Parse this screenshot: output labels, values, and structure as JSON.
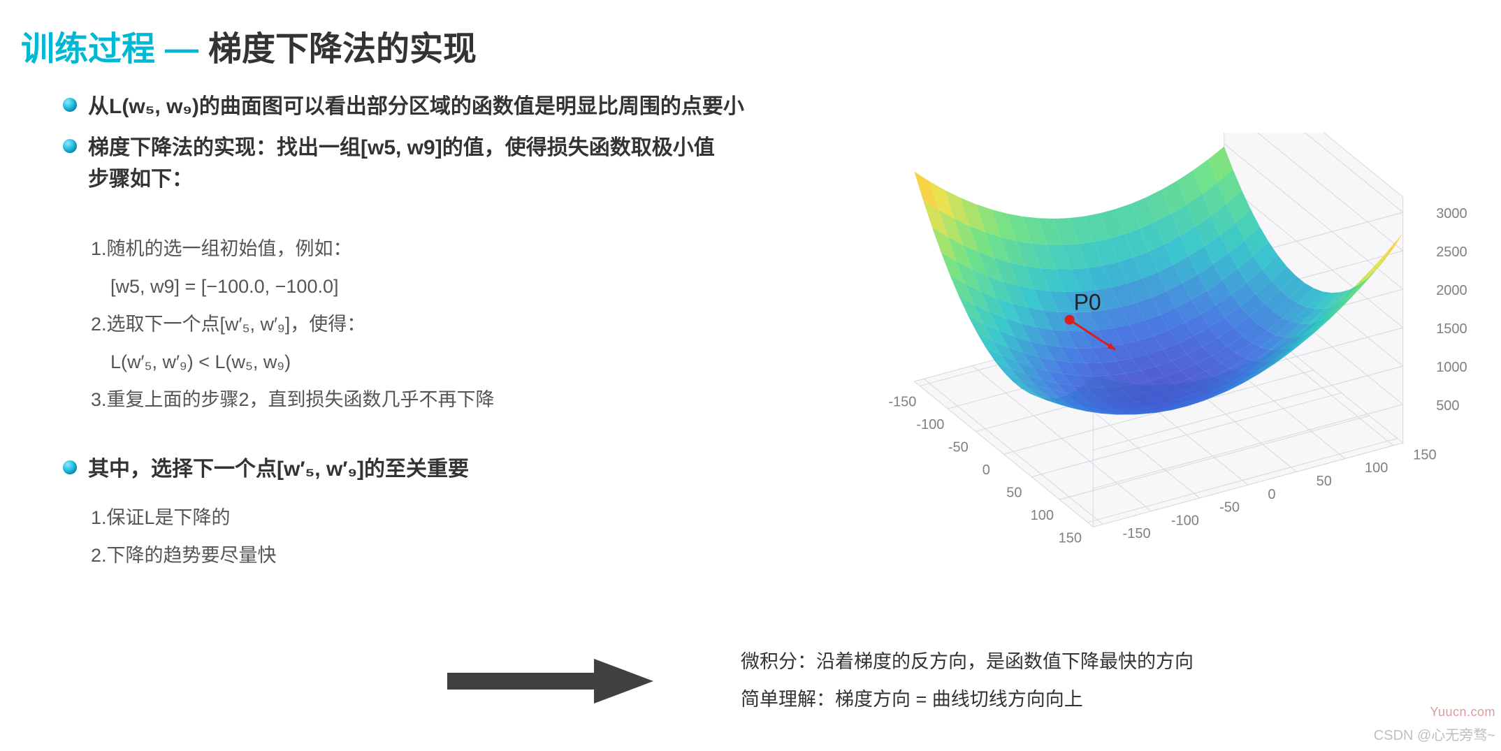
{
  "title": {
    "left": "训练过程",
    "dash": "—",
    "right": "梯度下降法的实现",
    "left_color": "#00b8d4",
    "dash_color": "#00b8d4",
    "right_color": "#333333",
    "font_size": 48
  },
  "bullets": {
    "b1": "从L(w₅, w₉)的曲面图可以看出部分区域的函数值是明显比周围的点要小",
    "b2_line1": "梯度下降法的实现：找出一组[w5, w9]的值，使得损失函数取极小值",
    "b2_line2": "步骤如下：",
    "dot_gradient": [
      "#8fe8ff",
      "#1fbde0",
      "#0878a8"
    ]
  },
  "steps_primary": {
    "s1": "1.随机的选一组初始值，例如：",
    "s1_eq": "[w5, w9] = [−100.0, −100.0]",
    "s2": "2.选取下一个点[w′₅, w′₉]，使得：",
    "s2_eq": "L(w′₅, w′₉) < L(w₅, w₉)",
    "s3": "3.重复上面的步骤2，直到损失函数几乎不再下降",
    "color": "#555555",
    "font_size": 27
  },
  "section2": {
    "heading": "其中，选择下一个点[w′₅, w′₉]的至关重要",
    "s1": "1.保证L是下降的",
    "s2": "2.下降的趋势要尽量快"
  },
  "arrow": {
    "color": "#404040",
    "length": 280,
    "thickness": 30
  },
  "right_notes": {
    "l1": "微积分：沿着梯度的反方向，是函数值下降最快的方向",
    "l2": "简单理解：梯度方向 = 曲线切线方向向上"
  },
  "watermark": "Yuucn.com",
  "credit": "CSDN @心无旁骛~",
  "chart": {
    "type": "3d-surface",
    "description": "loss surface L(w5,w9) saddle-like bowl",
    "x_ticks": [
      -150,
      -100,
      -50,
      0,
      50,
      100,
      150
    ],
    "y_ticks": [
      -150,
      -100,
      -50,
      0,
      50,
      100,
      150
    ],
    "z_ticks": [
      500,
      1000,
      1500,
      2000,
      2500,
      3000
    ],
    "tick_color": "#808080",
    "tick_fontsize": 20,
    "pane_bg": "#f7f7fa",
    "grid_color": "#d8d8dc",
    "colormap_stops": [
      {
        "t": 0.0,
        "c": "#4b2fbd"
      },
      {
        "t": 0.18,
        "c": "#3b6fe0"
      },
      {
        "t": 0.35,
        "c": "#29c3c9"
      },
      {
        "t": 0.55,
        "c": "#69e07b"
      },
      {
        "t": 0.75,
        "c": "#f6e03a"
      },
      {
        "t": 0.9,
        "c": "#f78d2a"
      },
      {
        "t": 1.0,
        "c": "#e02f2f"
      }
    ],
    "point_label": "P0",
    "point_label_fontsize": 32,
    "point_color": "#d81e1e",
    "arrow_color": "#d81e1e"
  }
}
